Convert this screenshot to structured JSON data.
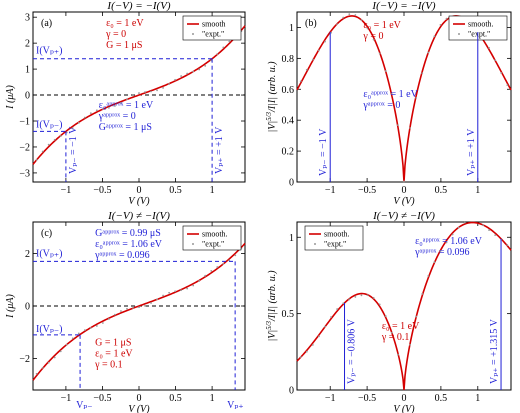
{
  "colors": {
    "curve": "#d40000",
    "points": "#999999",
    "annotation": "#1f1fd6",
    "text": "#000000"
  },
  "chart_data": [
    {
      "id": "a",
      "type": "line",
      "title": "I(−V) = −I(V)",
      "panel_label": "(a)",
      "xlabel": "V (V)",
      "ylabel": "I (μA)",
      "xlim": [
        -1.45,
        1.45
      ],
      "ylim": [
        -3.35,
        3.2
      ],
      "xticks": [
        -1,
        -0.5,
        0,
        0.5,
        1
      ],
      "xticklabels": [
        "−1",
        "−0.5",
        "0",
        "0.5",
        "1"
      ],
      "yticks": [
        -3,
        -2,
        -1,
        0,
        1,
        2,
        3
      ],
      "yticklabels": [
        "−3",
        "−2",
        "−1",
        "0",
        "1",
        "2",
        "3"
      ],
      "model": {
        "G": 1,
        "e0": 1,
        "gamma": 0
      },
      "legend": {
        "position": "top-right",
        "entries": [
          "smooth",
          "\"expt.\""
        ]
      },
      "params_red": [
        "ε₀ = 1 eV",
        "γ = 0",
        "G = 1 μS"
      ],
      "params_blue": [
        "ε₀ᵃᵖᵖʳᵒˣ = 1 eV",
        "γᵃᵖᵖʳᵒˣ = 0",
        "Gᵃᵖᵖʳᵒˣ = 1 μS"
      ],
      "markers": [
        {
          "label": "I(Vₚ₊)",
          "x": 1,
          "y": 1.4
        },
        {
          "label": "I(Vₚ₋)",
          "x": -1,
          "y": -1.4
        }
      ],
      "vlabels": [
        "Vₚ₋ = −1 V",
        "Vₚ₊ = +1 V"
      ]
    },
    {
      "id": "b",
      "type": "line",
      "title": "I(−V) = −I(V)",
      "panel_label": "(b)",
      "xlabel": "V (V)",
      "ylabel": "|V|^{5/3}/I|I| (arb. u.)",
      "ylabel_main": "|V|",
      "ylabel_sup": "5/3",
      "ylabel_rest": "/I|I| (arb. u.)",
      "xlim": [
        -1.45,
        1.45
      ],
      "ylim": [
        0,
        1.1
      ],
      "xticks": [
        -1,
        -0.5,
        0,
        0.5,
        1
      ],
      "xticklabels": [
        "−1",
        "−0.5",
        "0",
        "0.5",
        "1"
      ],
      "yticks": [
        0,
        0.2,
        0.4,
        0.6,
        0.8,
        1
      ],
      "yticklabels": [
        "0",
        "0.2",
        "0.4",
        "0.6",
        "0.8",
        "1"
      ],
      "model": {
        "e0": 1,
        "gamma": 0
      },
      "legend": {
        "position": "top-right",
        "entries": [
          "smooth.",
          "\"expt.\""
        ]
      },
      "params_red": [
        "ε₀ = 1 eV",
        "γ = 0"
      ],
      "params_blue": [
        "ε₀ᵃᵖᵖʳᵒˣ = 1 eV",
        "γᵃᵖᵖʳᵒˣ = 0"
      ],
      "vlabels": [
        "Vₚ₋ = −1 V",
        "Vₚ₊ = +1 V"
      ]
    },
    {
      "id": "c",
      "type": "line",
      "title": "I(−V) ≠ −I(V)",
      "panel_label": "(c)",
      "xlabel": "V (V)",
      "ylabel": "I (μA)",
      "xlim": [
        -1.45,
        1.45
      ],
      "ylim": [
        -3.2,
        3.2
      ],
      "xticks": [
        -1,
        -0.5,
        0,
        0.5,
        1
      ],
      "xticklabels": [
        "−1",
        "−0.5",
        "0",
        "0.5",
        "1"
      ],
      "yticks": [
        -2,
        0,
        2
      ],
      "yticklabels": [
        "−2",
        "0",
        "2"
      ],
      "model": {
        "G": 1,
        "e0": 1,
        "gamma": 0.1
      },
      "legend": {
        "position": "top-right",
        "entries": [
          "smooth.",
          "\"expt.\""
        ]
      },
      "params_red": [
        "G = 1 μS",
        "ε₀ = 1 eV",
        "γ = 0.1"
      ],
      "params_blue": [
        "Gᵃᵖᵖʳᵒˣ = 0.99 μS",
        "ε₀ᵃᵖᵖʳᵒˣ = 1.06 eV",
        "γᵃᵖᵖʳᵒˣ = 0.096"
      ],
      "markers": [
        {
          "label": "I(Vₚ₊)",
          "x": 1.315,
          "y": 1.7
        },
        {
          "label": "I(Vₚ₋)",
          "x": -0.806,
          "y": -1.1
        }
      ],
      "vlabels": [
        "Vₚ₋",
        "Vₚ₊"
      ]
    },
    {
      "id": "d",
      "type": "line",
      "title": "I(−V) ≠ −I(V)",
      "panel_label": "(d)",
      "xlabel": "V (V)",
      "ylabel": "|V|^{5/3}/I|I| (arb. u.)",
      "ylabel_main": "|V|",
      "ylabel_sup": "5/3",
      "ylabel_rest": "/I|I| (arb. u.)",
      "xlim": [
        -1.45,
        1.45
      ],
      "ylim": [
        0,
        1.1
      ],
      "xticks": [
        -1,
        -0.5,
        0,
        0.5,
        1
      ],
      "xticklabels": [
        "−1",
        "−0.5",
        "0",
        "0.5",
        "1"
      ],
      "yticks": [
        0,
        0.5,
        1
      ],
      "yticklabels": [
        "0",
        "0.5",
        "1"
      ],
      "model": {
        "e0": 1,
        "gamma": 0.1
      },
      "legend": {
        "position": "top-left",
        "entries": [
          "smooth.",
          "\"expt.\""
        ]
      },
      "params_red": [
        "ε₀ = 1 eV",
        "γ = 0.1"
      ],
      "params_blue": [
        "ε₀ᵃᵖᵖʳᵒˣ = 1.06 eV",
        "γᵃᵖᵖʳᵒˣ = 0.096"
      ],
      "vlabels": [
        "Vₚ₋ = −0.806 V",
        "Vₚ₊ = +1.315 V"
      ]
    }
  ]
}
